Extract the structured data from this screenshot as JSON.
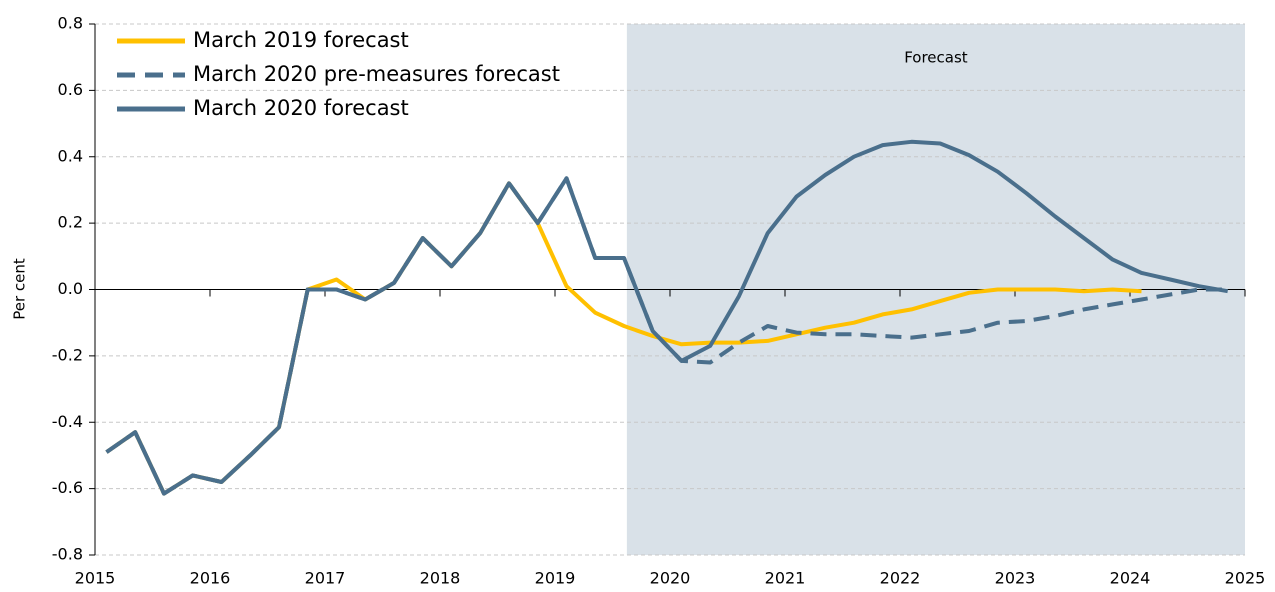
{
  "chart_data": {
    "type": "line",
    "ylabel": "Per cent",
    "x": [
      2015.1,
      2015.35,
      2015.6,
      2015.85,
      2016.1,
      2016.35,
      2016.6,
      2016.85,
      2017.1,
      2017.35,
      2017.6,
      2017.85,
      2018.1,
      2018.35,
      2018.6,
      2018.85,
      2019.1,
      2019.35,
      2019.6,
      2019.85,
      2020.1,
      2020.35,
      2020.6,
      2020.85,
      2021.1,
      2021.35,
      2021.6,
      2021.85,
      2022.1,
      2022.35,
      2022.6,
      2022.85,
      2023.1,
      2023.35,
      2023.6,
      2023.85,
      2024.1,
      2024.35,
      2024.6,
      2024.85
    ],
    "series": [
      {
        "name": "March 2019 forecast",
        "color": "#FFC000",
        "dashed": false,
        "values": [
          -0.49,
          -0.43,
          -0.615,
          -0.56,
          -0.58,
          -0.5,
          -0.415,
          0.0,
          0.03,
          -0.03,
          0.02,
          0.155,
          0.07,
          0.17,
          0.32,
          0.2,
          0.01,
          -0.07,
          -0.11,
          -0.14,
          -0.165,
          -0.16,
          -0.16,
          -0.155,
          -0.135,
          -0.115,
          -0.1,
          -0.075,
          -0.06,
          -0.035,
          -0.01,
          0.0,
          0.0,
          0.0,
          -0.005,
          0.0,
          -0.005,
          null,
          null,
          null
        ]
      },
      {
        "name": "March 2020 pre-measures forecast",
        "color": "#4A6F8C",
        "dashed": true,
        "values": [
          -0.49,
          -0.43,
          -0.615,
          -0.56,
          -0.58,
          -0.5,
          -0.415,
          0.0,
          0.0,
          -0.03,
          0.02,
          0.155,
          0.07,
          0.17,
          0.32,
          0.2,
          0.335,
          0.095,
          0.095,
          -0.125,
          -0.215,
          -0.22,
          -0.16,
          -0.11,
          -0.13,
          -0.135,
          -0.135,
          -0.14,
          -0.145,
          -0.135,
          -0.125,
          -0.1,
          -0.095,
          -0.08,
          -0.06,
          -0.045,
          -0.03,
          -0.015,
          0.0,
          0.0
        ]
      },
      {
        "name": "March 2020 forecast",
        "color": "#4A6F8C",
        "dashed": false,
        "values": [
          -0.49,
          -0.43,
          -0.615,
          -0.56,
          -0.58,
          -0.5,
          -0.415,
          0.0,
          0.0,
          -0.03,
          0.02,
          0.155,
          0.07,
          0.17,
          0.32,
          0.2,
          0.335,
          0.095,
          0.095,
          -0.125,
          -0.215,
          -0.17,
          -0.02,
          0.17,
          0.28,
          0.345,
          0.4,
          0.435,
          0.445,
          0.44,
          0.405,
          0.355,
          0.29,
          0.22,
          0.155,
          0.09,
          0.05,
          0.03,
          0.01,
          -0.005
        ]
      }
    ],
    "shaded_region": {
      "label": "Forecast",
      "xmin": 2019.625,
      "xmax": 2025,
      "color": "#D9E1E8"
    },
    "xlim": [
      2015,
      2025
    ],
    "xticks": [
      2015,
      2016,
      2017,
      2018,
      2019,
      2020,
      2021,
      2022,
      2023,
      2024,
      2025
    ],
    "ylim": [
      -0.8,
      0.8
    ],
    "yticks": [
      -0.8,
      -0.6,
      -0.4,
      -0.2,
      {
        "value": 0,
        "label": "0.0"
      },
      0.2,
      0.4,
      0.6,
      0.8
    ],
    "grid": true,
    "legend": "top-left"
  }
}
